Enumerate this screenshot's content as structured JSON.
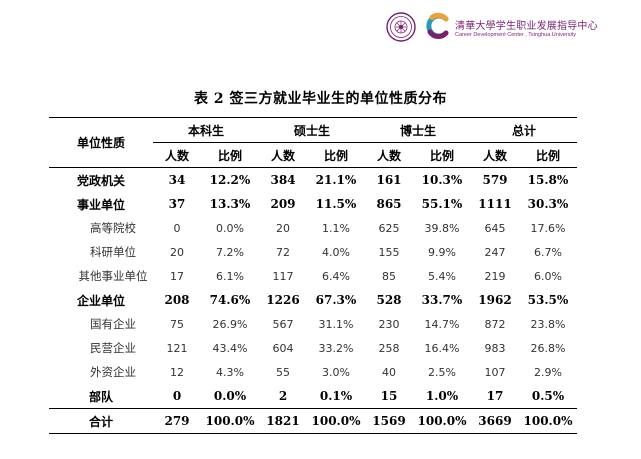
{
  "header": {
    "brand_cn": "清華大學学生职业发展指导中心",
    "brand_en": "Career Development Center , Tsinghua University",
    "seal_icon": "tsinghua-seal-icon",
    "mark_icon": "cdc-c-mark-icon",
    "colors": {
      "brand_purple": "#7a1f6f",
      "mark_teal": "#2a9bb5",
      "mark_orange": "#f0a038"
    }
  },
  "title": "表 2 签三方就业毕业生的单位性质分布",
  "table": {
    "corner_label": "单位性质",
    "groups": [
      "本科生",
      "硕士生",
      "博士生",
      "总计"
    ],
    "sub_headers": [
      "人数",
      "比例",
      "人数",
      "比例",
      "人数",
      "比例",
      "人数",
      "比例"
    ],
    "rows": [
      {
        "label": "党政机关",
        "kind": "bold",
        "cells": [
          "34",
          "12.2%",
          "384",
          "21.1%",
          "161",
          "10.3%",
          "579",
          "15.8%"
        ]
      },
      {
        "label": "事业单位",
        "kind": "bold",
        "cells": [
          "37",
          "13.3%",
          "209",
          "11.5%",
          "865",
          "55.1%",
          "1111",
          "30.3%"
        ]
      },
      {
        "label": "高等院校",
        "kind": "sub",
        "cells": [
          "0",
          "0.0%",
          "20",
          "1.1%",
          "625",
          "39.8%",
          "645",
          "17.6%"
        ]
      },
      {
        "label": "科研单位",
        "kind": "sub",
        "cells": [
          "20",
          "7.2%",
          "72",
          "4.0%",
          "155",
          "9.9%",
          "247",
          "6.7%"
        ]
      },
      {
        "label": "其他事业单位",
        "kind": "sub",
        "cells": [
          "17",
          "6.1%",
          "117",
          "6.4%",
          "85",
          "5.4%",
          "219",
          "6.0%"
        ]
      },
      {
        "label": "企业单位",
        "kind": "bold",
        "cells": [
          "208",
          "74.6%",
          "1226",
          "67.3%",
          "528",
          "33.7%",
          "1962",
          "53.5%"
        ]
      },
      {
        "label": "国有企业",
        "kind": "sub",
        "cells": [
          "75",
          "26.9%",
          "567",
          "31.1%",
          "230",
          "14.7%",
          "872",
          "23.8%"
        ]
      },
      {
        "label": "民营企业",
        "kind": "sub",
        "cells": [
          "121",
          "43.4%",
          "604",
          "33.2%",
          "258",
          "16.4%",
          "983",
          "26.8%"
        ]
      },
      {
        "label": "外资企业",
        "kind": "sub",
        "cells": [
          "12",
          "4.3%",
          "55",
          "3.0%",
          "40",
          "2.5%",
          "107",
          "2.9%"
        ]
      },
      {
        "label": "部队",
        "kind": "bold",
        "cells": [
          "0",
          "0.0%",
          "2",
          "0.1%",
          "15",
          "1.0%",
          "17",
          "0.5%"
        ]
      }
    ],
    "total": {
      "label": "合计",
      "cells": [
        "279",
        "100.0%",
        "1821",
        "100.0%",
        "1569",
        "100.0%",
        "3669",
        "100.0%"
      ]
    }
  }
}
